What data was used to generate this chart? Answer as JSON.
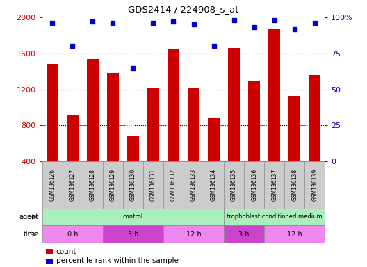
{
  "title": "GDS2414 / 224908_s_at",
  "samples": [
    "GSM136126",
    "GSM136127",
    "GSM136128",
    "GSM136129",
    "GSM136130",
    "GSM136131",
    "GSM136132",
    "GSM136133",
    "GSM136134",
    "GSM136135",
    "GSM136136",
    "GSM136137",
    "GSM136138",
    "GSM136139"
  ],
  "counts": [
    1480,
    920,
    1540,
    1380,
    690,
    1220,
    1650,
    1220,
    890,
    1660,
    1290,
    1880,
    1130,
    1360
  ],
  "percentiles": [
    96,
    80,
    97,
    96,
    65,
    96,
    97,
    95,
    80,
    98,
    93,
    98,
    92,
    96
  ],
  "bar_color": "#cc0000",
  "dot_color": "#0000cc",
  "ylim_left": [
    400,
    2000
  ],
  "ylim_right": [
    0,
    100
  ],
  "yticks_left": [
    400,
    800,
    1200,
    1600,
    2000
  ],
  "yticks_right": [
    0,
    25,
    50,
    75,
    100
  ],
  "grid_values": [
    800,
    1200,
    1600
  ],
  "agent_groups": [
    {
      "label": "control",
      "start": 0,
      "end": 9,
      "color": "#aaeebb"
    },
    {
      "label": "trophoblast conditioned medium",
      "start": 9,
      "end": 14,
      "color": "#aaeebb"
    }
  ],
  "time_groups": [
    {
      "label": "0 h",
      "start": 0,
      "end": 3,
      "color": "#ee88ee"
    },
    {
      "label": "3 h",
      "start": 3,
      "end": 6,
      "color": "#cc44cc"
    },
    {
      "label": "12 h",
      "start": 6,
      "end": 9,
      "color": "#ee88ee"
    },
    {
      "label": "3 h",
      "start": 9,
      "end": 11,
      "color": "#cc44cc"
    },
    {
      "label": "12 h",
      "start": 11,
      "end": 14,
      "color": "#ee88ee"
    }
  ],
  "agent_label": "agent",
  "time_label": "time",
  "legend_count_label": "count",
  "legend_pct_label": "percentile rank within the sample",
  "fig_bg": "#ffffff",
  "tick_bg_color": "#cccccc",
  "sample_label_color": "#000000"
}
